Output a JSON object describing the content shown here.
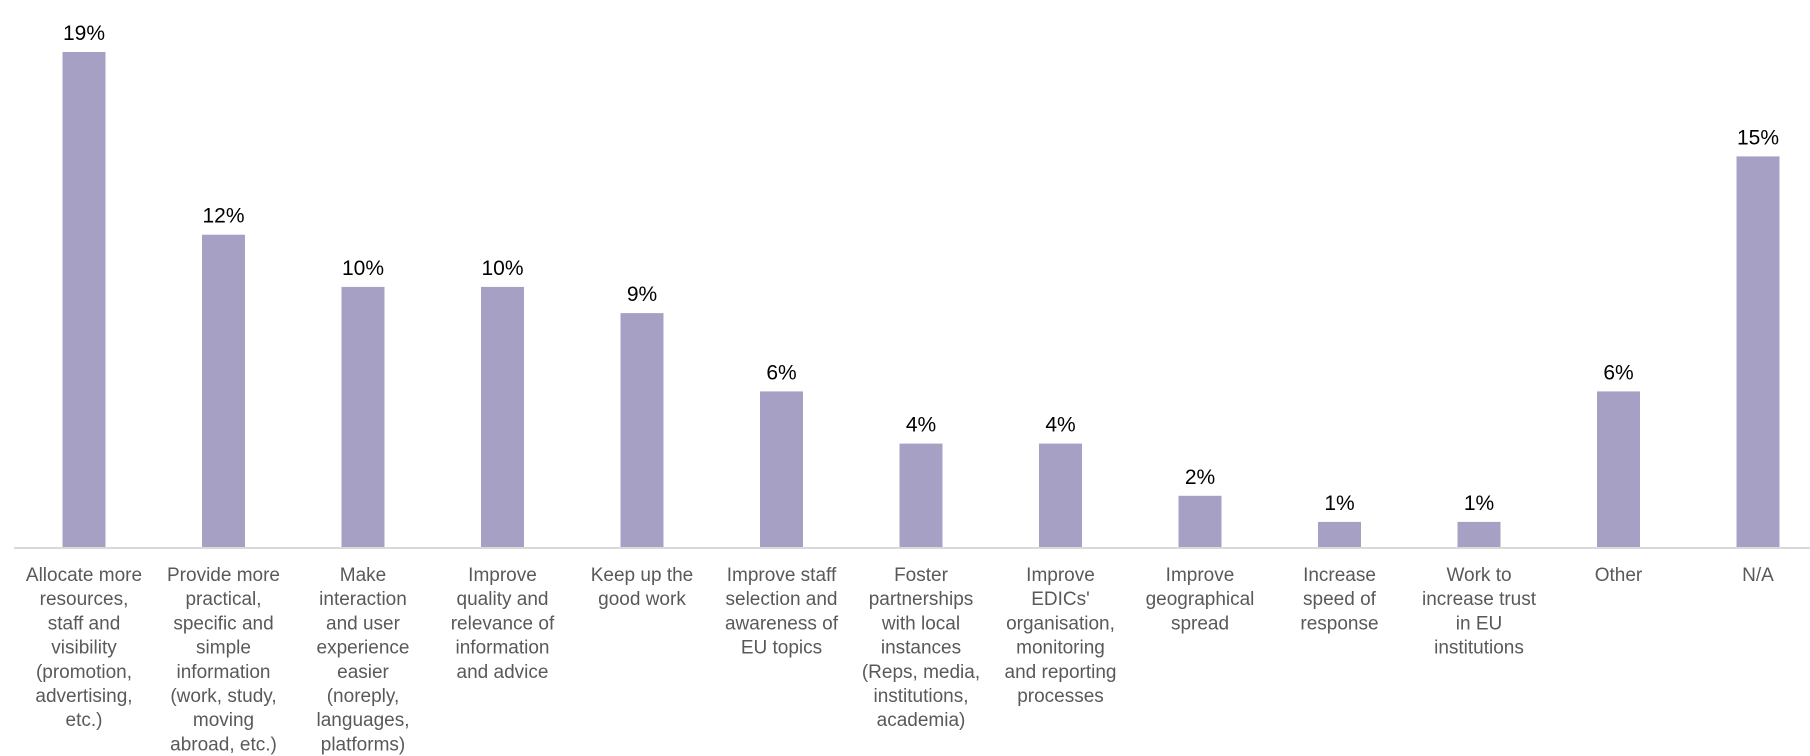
{
  "chart_data": {
    "type": "bar",
    "categories": [
      "Allocate more resources, staff and visibility (promotion, advertising, etc.)",
      "Provide more practical, specific and simple information (work, study, moving abroad, etc.)",
      "Make interaction and user experience easier (noreply, languages, platforms)",
      "Improve quality and relevance of information and advice",
      "Keep up the good work",
      "Improve staff selection and awareness of EU topics",
      "Foster partnerships with local instances (Reps, media, institutions, academia)",
      "Improve EDICs' organisation, monitoring and reporting processes",
      "Improve geographical spread",
      "Increase speed of response",
      "Work to increase trust in EU institutions",
      "Other",
      "N/A"
    ],
    "category_lines": [
      [
        "Allocate more",
        "resources,",
        "staff and",
        "visibility",
        "(promotion,",
        "advertising,",
        "etc.)"
      ],
      [
        "Provide more",
        "practical,",
        "specific and",
        "simple",
        "information",
        "(work, study,",
        "moving",
        "abroad, etc.)"
      ],
      [
        "Make",
        "interaction",
        "and user",
        "experience",
        "easier",
        "(noreply,",
        "languages,",
        "platforms)"
      ],
      [
        "Improve",
        "quality and",
        "relevance of",
        "information",
        "and advice"
      ],
      [
        "Keep up the",
        "good work"
      ],
      [
        "Improve staff",
        "selection and",
        "awareness of",
        "EU topics"
      ],
      [
        "Foster",
        "partnerships",
        "with local",
        "instances",
        "(Reps, media,",
        "institutions,",
        "academia)"
      ],
      [
        "Improve",
        "EDICs'",
        "organisation,",
        "monitoring",
        "and reporting",
        "processes"
      ],
      [
        "Improve",
        "geographical",
        "spread"
      ],
      [
        "Increase",
        "speed of",
        "response"
      ],
      [
        "Work to",
        "increase trust",
        "in EU",
        "institutions"
      ],
      [
        "Other"
      ],
      [
        "N/A"
      ]
    ],
    "values": [
      19,
      12,
      10,
      10,
      9,
      6,
      4,
      4,
      2,
      1,
      1,
      6,
      15
    ],
    "value_labels": [
      "19%",
      "12%",
      "10%",
      "10%",
      "9%",
      "6%",
      "4%",
      "4%",
      "2%",
      "1%",
      "1%",
      "6%",
      "15%"
    ],
    "ylim": [
      0,
      19
    ],
    "bar_color": "#a6a1c4",
    "grid": false,
    "legend": "none"
  }
}
